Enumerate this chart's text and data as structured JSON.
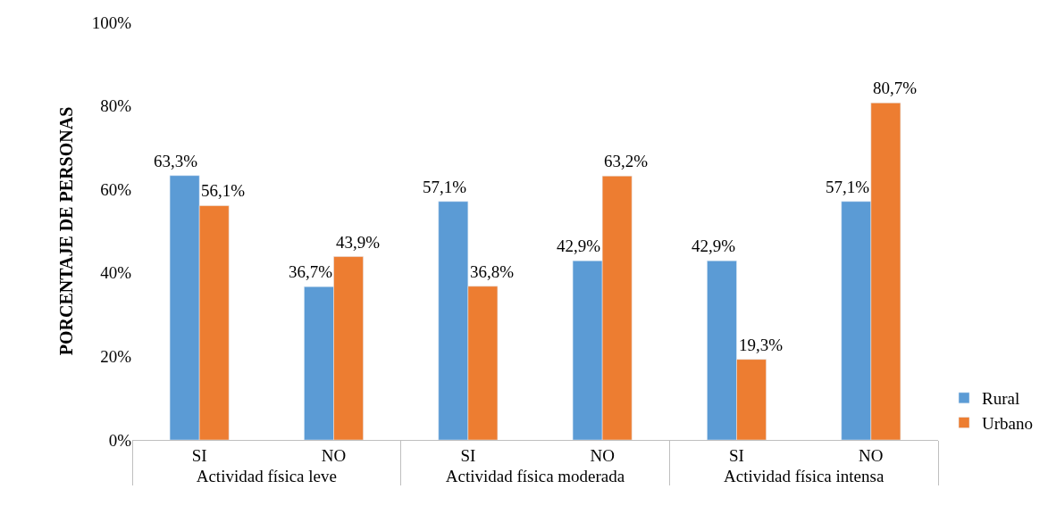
{
  "chart_data": {
    "type": "bar",
    "ylabel": "PORCENTAJE DE PERSONAS",
    "categories": [
      "SI",
      "NO",
      "SI",
      "NO",
      "SI",
      "NO"
    ],
    "annotations": [
      "Actividad física leve",
      "Actividad física moderada",
      "Actividad física intensa"
    ],
    "series": [
      {
        "name": "Rural",
        "color": "#5b9bd5",
        "values": [
          63.3,
          36.7,
          57.1,
          42.9,
          42.9,
          57.1
        ],
        "value_labels": [
          "63,3%",
          "36,7%",
          "57,1%",
          "42,9%",
          "42,9%",
          "57,1%"
        ]
      },
      {
        "name": "Urbano",
        "color": "#ed7d31",
        "values": [
          56.1,
          43.9,
          36.8,
          63.2,
          19.3,
          80.7
        ],
        "value_labels": [
          "56,1%",
          "43,9%",
          "36,8%",
          "63,2%",
          "19,3%",
          "80,7%"
        ]
      }
    ],
    "ylim": [
      0,
      100
    ],
    "yticks": [
      {
        "value": 0,
        "label": "0%"
      },
      {
        "value": 20,
        "label": "20%"
      },
      {
        "value": 40,
        "label": "40%"
      },
      {
        "value": 60,
        "label": "60%"
      },
      {
        "value": 80,
        "label": "80%"
      },
      {
        "value": 100,
        "label": "100%"
      }
    ],
    "legend": "bottom right"
  }
}
